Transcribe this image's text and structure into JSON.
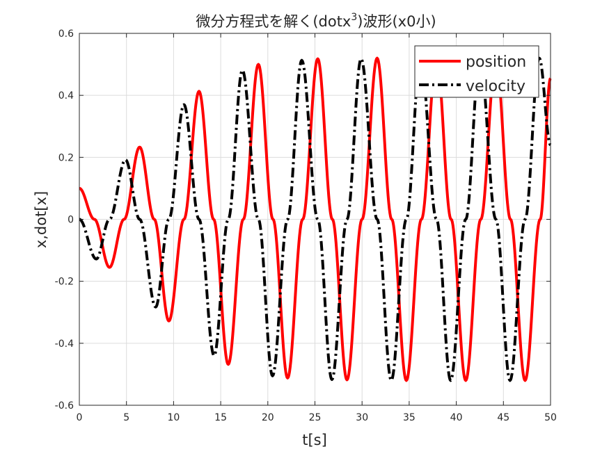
{
  "chart_data": {
    "type": "line",
    "title_main": "微分方程式を解く(dotx",
    "title_sup": "3",
    "title_tail": ")波形(x0小)",
    "xlabel": "t[s]",
    "ylabel": "x,dot[x]",
    "xlim": [
      0,
      50
    ],
    "ylim": [
      -0.6,
      0.6
    ],
    "xticks": [
      0,
      5,
      10,
      15,
      20,
      25,
      30,
      35,
      40,
      45,
      50
    ],
    "yticks": [
      -0.6,
      -0.4,
      -0.2,
      0,
      0.2,
      0.4,
      0.6
    ],
    "xtick_labels": [
      "0",
      "5",
      "10",
      "15",
      "20",
      "25",
      "30",
      "35",
      "40",
      "45",
      "50"
    ],
    "ytick_labels": [
      "-0.6",
      "-0.4",
      "-0.2",
      "0",
      "0.2",
      "0.4",
      "0.6"
    ],
    "grid": true,
    "legend_position": "top-right",
    "series": [
      {
        "name": "position",
        "color": "#ff0000",
        "style": "solid",
        "points": [
          [
            0,
            0.1
          ],
          [
            1.6,
            0.0
          ],
          [
            3.2,
            -0.155
          ],
          [
            4.75,
            0.0
          ],
          [
            6.4,
            0.233
          ],
          [
            7.95,
            0.0
          ],
          [
            9.5,
            -0.328
          ],
          [
            11.1,
            0.0
          ],
          [
            12.7,
            0.413
          ],
          [
            14.25,
            0.0
          ],
          [
            15.8,
            -0.468
          ],
          [
            17.4,
            0.0
          ],
          [
            19.0,
            0.5
          ],
          [
            20.55,
            0.0
          ],
          [
            22.1,
            -0.512
          ],
          [
            23.7,
            0.0
          ],
          [
            25.3,
            0.518
          ],
          [
            26.85,
            0.0
          ],
          [
            28.4,
            -0.518
          ],
          [
            30.0,
            0.0
          ],
          [
            31.6,
            0.52
          ],
          [
            33.15,
            0.0
          ],
          [
            34.7,
            -0.52
          ],
          [
            36.3,
            0.0
          ],
          [
            37.9,
            0.52
          ],
          [
            39.45,
            0.0
          ],
          [
            41.0,
            -0.52
          ],
          [
            42.6,
            0.0
          ],
          [
            44.2,
            0.52
          ],
          [
            45.75,
            0.0
          ],
          [
            47.3,
            -0.52
          ],
          [
            48.9,
            0.0
          ],
          [
            50,
            0.455
          ]
        ]
      },
      {
        "name": "velocity",
        "color": "#000000",
        "style": "dashdot",
        "points": [
          [
            0,
            0.0
          ],
          [
            1.8,
            -0.128
          ],
          [
            3.2,
            0.0
          ],
          [
            4.9,
            0.192
          ],
          [
            6.4,
            0.0
          ],
          [
            8.1,
            -0.283
          ],
          [
            9.5,
            0.0
          ],
          [
            11.1,
            0.37
          ],
          [
            12.7,
            0.0
          ],
          [
            14.3,
            -0.44
          ],
          [
            15.8,
            0.0
          ],
          [
            17.3,
            0.481
          ],
          [
            19.0,
            0.0
          ],
          [
            20.5,
            -0.505
          ],
          [
            22.1,
            0.0
          ],
          [
            23.6,
            0.513
          ],
          [
            25.3,
            0.0
          ],
          [
            26.8,
            -0.517
          ],
          [
            28.4,
            0.0
          ],
          [
            29.9,
            0.518
          ],
          [
            31.6,
            0.0
          ],
          [
            33.1,
            -0.52
          ],
          [
            34.7,
            0.0
          ],
          [
            36.2,
            0.52
          ],
          [
            37.9,
            0.0
          ],
          [
            39.4,
            -0.52
          ],
          [
            41.0,
            0.0
          ],
          [
            42.5,
            0.52
          ],
          [
            44.2,
            0.0
          ],
          [
            45.7,
            -0.52
          ],
          [
            47.3,
            0.0
          ],
          [
            48.8,
            0.52
          ],
          [
            50,
            0.24
          ]
        ]
      }
    ]
  }
}
